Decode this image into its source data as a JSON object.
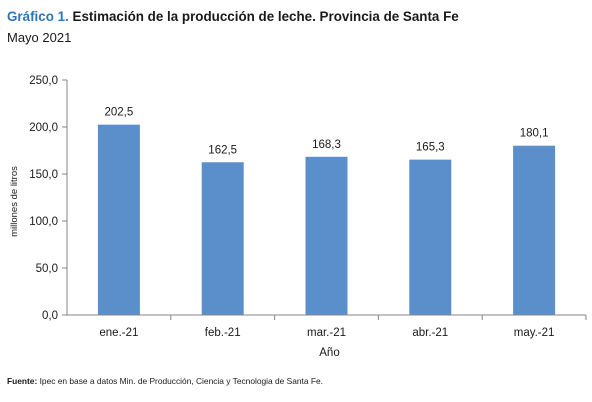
{
  "header": {
    "title_prefix": "Gráfico 1.",
    "title_text": "Estimación de la producción de leche. Provincia de Santa Fe",
    "subtitle": "Mayo 2021"
  },
  "footer": {
    "source_label": "Fuente:",
    "source_text": "Ipec en base a datos Min. de Producción, Ciencia y Tecnologia de Santa Fe."
  },
  "colors": {
    "bar": "#5b8fcb",
    "axis": "#868686",
    "text": "#1a1a1a"
  },
  "chart_data": {
    "type": "bar",
    "categories": [
      "ene.-21",
      "feb.-21",
      "mar.-21",
      "abr.-21",
      "may.-21"
    ],
    "values": [
      202.5,
      162.5,
      168.3,
      165.3,
      180.1
    ],
    "value_labels": [
      "202,5",
      "162,5",
      "168,3",
      "165,3",
      "180,1"
    ],
    "xlabel": "Año",
    "ylabel": "millones de litros",
    "ylim": [
      0,
      250
    ],
    "yticks": [
      0,
      50,
      100,
      150,
      200,
      250
    ],
    "ytick_labels": [
      "0,0",
      "50,0",
      "100,0",
      "150,0",
      "200,0",
      "250,0"
    ],
    "grid": false,
    "legend": false
  }
}
